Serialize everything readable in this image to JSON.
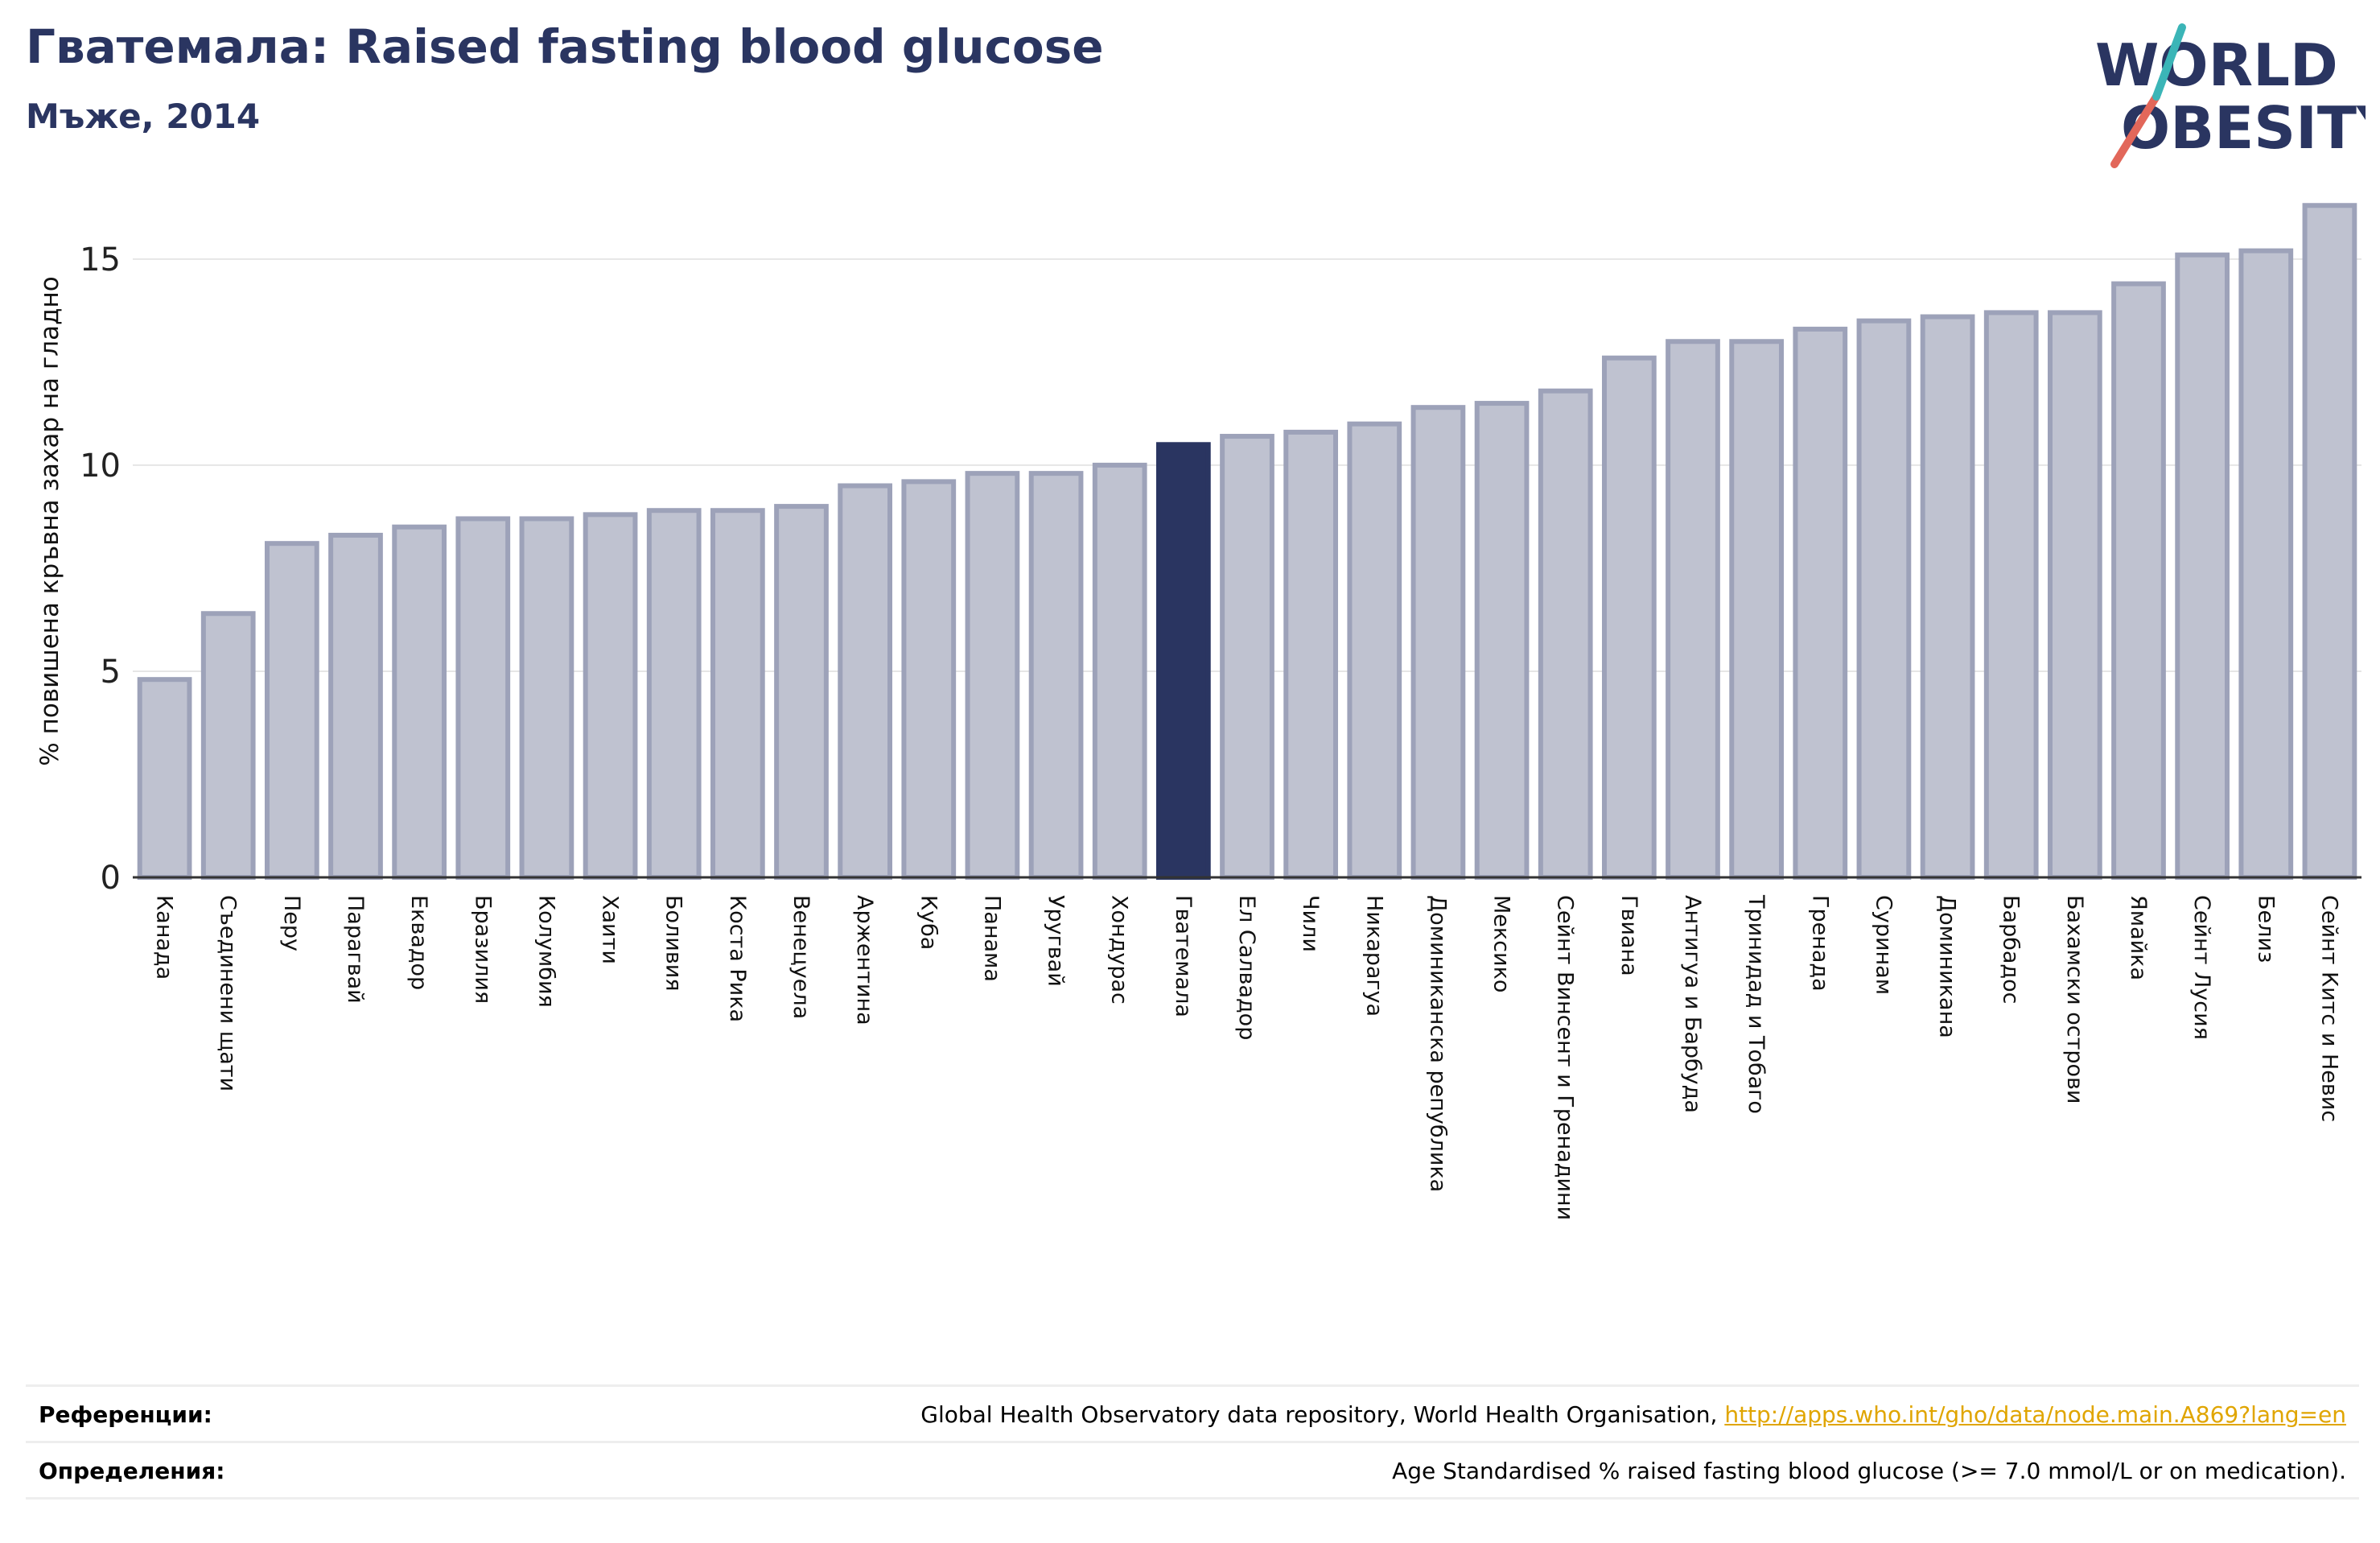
{
  "header": {
    "title": "Гватемала: Raised fasting blood glucose",
    "subtitle": "Мъже, 2014"
  },
  "logo": {
    "line1": "WORLD",
    "line2": "OBESITY",
    "icon": "world-obesity-logo"
  },
  "colors": {
    "bar": "#bfc2d0",
    "bar_border": "#9da2b9",
    "highlight": "#2a3561",
    "title": "#2a3561",
    "link": "#e0a500"
  },
  "chart_data": {
    "type": "bar",
    "ylabel": "% повишена кръвна захар на гладно",
    "ylim": [
      0,
      16.5
    ],
    "yticks": [
      0,
      5,
      10,
      15
    ],
    "grid": true,
    "highlight": "Гватемала",
    "categories": [
      "Канада",
      "Съединени щати",
      "Перу",
      "Парагвай",
      "Еквадор",
      "Бразилия",
      "Колумбия",
      "Хаити",
      "Боливия",
      "Коста Рика",
      "Венецуела",
      "Аржентина",
      "Куба",
      "Панама",
      "Уругвай",
      "Хондурас",
      "Гватемала",
      "Ел Салвадор",
      "Чили",
      "Никарагуа",
      "Доминиканска република",
      "Мексико",
      "Сейнт Винсент и Гренадини",
      "Гвиана",
      "Антигуа и Барбуда",
      "Тринидад и Тобаго",
      "Гренада",
      "Суринам",
      "Доминикана",
      "Барбадос",
      "Бахамски острови",
      "Ямайка",
      "Сейнт Лусия",
      "Белиз",
      "Сейнт Китс и Невис"
    ],
    "values": [
      4.8,
      6.4,
      8.1,
      8.3,
      8.5,
      8.7,
      8.7,
      8.8,
      8.9,
      8.9,
      9.0,
      9.5,
      9.6,
      9.8,
      9.8,
      10.0,
      10.5,
      10.7,
      10.8,
      11.0,
      11.4,
      11.5,
      11.8,
      12.6,
      13.0,
      13.0,
      13.3,
      13.5,
      13.6,
      13.7,
      13.7,
      14.4,
      15.1,
      15.2,
      16.3
    ]
  },
  "footer": {
    "references_label": "Референции:",
    "references_text": "Global Health Observatory data repository, World Health Organisation, ",
    "references_link": "http://apps.who.int/gho/data/node.main.A869?lang=en",
    "definitions_label": "Определения:",
    "definitions_text": "Age Standardised % raised fasting blood glucose (>= 7.0 mmol/L or on medication)."
  }
}
